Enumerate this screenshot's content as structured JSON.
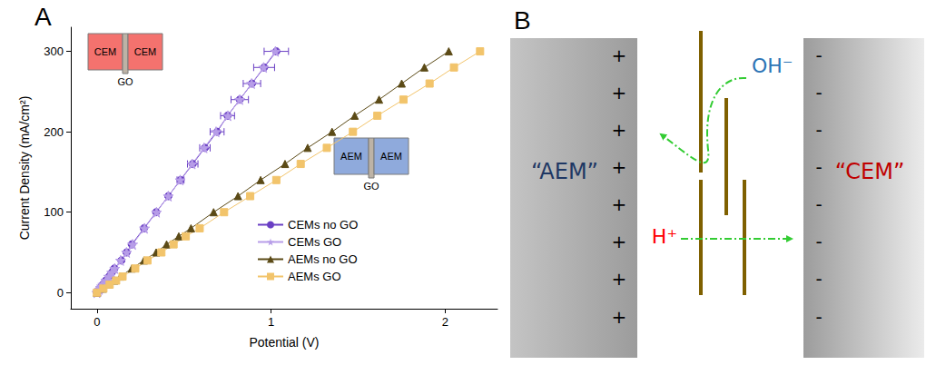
{
  "chart_data": {
    "type": "line",
    "panel_label": "A",
    "x_label": "Potential (V)",
    "y_label": "Current Density (mA/cm²)",
    "xlim": [
      -0.15,
      2.3
    ],
    "xticks": [
      0,
      1,
      2
    ],
    "ylim": [
      -20,
      330
    ],
    "yticks": [
      0,
      100,
      200,
      300
    ],
    "grid": false,
    "legend": "lower right",
    "annotations": [
      {
        "labels": [
          "CEM",
          "CEM"
        ],
        "middle": "GO"
      },
      {
        "labels": [
          "AEM",
          "AEM"
        ],
        "middle": "GO"
      }
    ],
    "series": [
      {
        "name": "CEMs no GO",
        "color": "#6a3fc4",
        "marker": "circle",
        "x": [
          0,
          0.007,
          0.014,
          0.021,
          0.027,
          0.034,
          0.05,
          0.07,
          0.085,
          0.1,
          0.14,
          0.17,
          0.2,
          0.27,
          0.34,
          0.41,
          0.48,
          0.55,
          0.62,
          0.69,
          0.75,
          0.82,
          0.89,
          0.96,
          1.03
        ],
        "values": [
          0,
          2,
          4,
          6,
          8,
          10,
          15,
          20,
          25,
          30,
          40,
          50,
          60,
          80,
          100,
          120,
          140,
          160,
          180,
          200,
          220,
          240,
          260,
          280,
          300
        ],
        "x_error": [
          null,
          null,
          null,
          null,
          null,
          null,
          null,
          null,
          null,
          null,
          null,
          null,
          null,
          null,
          null,
          null,
          0.02,
          0.03,
          0.03,
          0.04,
          0.04,
          0.05,
          0.05,
          0.06,
          0.07
        ]
      },
      {
        "name": "CEMs GO",
        "color": "#b79de8",
        "marker": "star",
        "x": [
          0,
          0.007,
          0.014,
          0.02,
          0.027,
          0.034,
          0.051,
          0.068,
          0.085,
          0.102,
          0.136,
          0.17,
          0.205,
          0.273,
          0.342,
          0.41,
          0.478,
          0.547,
          0.615,
          0.684,
          0.752,
          0.82,
          0.888,
          0.957,
          1.025
        ],
        "values": [
          0,
          2,
          4,
          6,
          8,
          10,
          15,
          20,
          25,
          30,
          40,
          50,
          60,
          80,
          100,
          120,
          140,
          160,
          180,
          200,
          220,
          240,
          260,
          280,
          300
        ]
      },
      {
        "name": "AEMs no GO",
        "color": "#5b4a16",
        "marker": "triangle",
        "x": [
          0,
          0.034,
          0.067,
          0.1,
          0.135,
          0.2,
          0.27,
          0.34,
          0.4,
          0.47,
          0.54,
          0.67,
          0.81,
          0.94,
          1.08,
          1.21,
          1.35,
          1.48,
          1.62,
          1.75,
          1.88,
          2.02
        ],
        "values": [
          0,
          5,
          10,
          15,
          20,
          30,
          40,
          50,
          60,
          70,
          80,
          100,
          120,
          140,
          160,
          180,
          200,
          220,
          240,
          260,
          280,
          300
        ]
      },
      {
        "name": "AEMs GO",
        "color": "#f2c46b",
        "marker": "square",
        "x": [
          0,
          0.037,
          0.073,
          0.11,
          0.147,
          0.22,
          0.29,
          0.37,
          0.44,
          0.51,
          0.59,
          0.73,
          0.88,
          1.03,
          1.17,
          1.32,
          1.47,
          1.61,
          1.76,
          1.91,
          2.05,
          2.2
        ],
        "values": [
          0,
          5,
          10,
          15,
          20,
          30,
          40,
          50,
          60,
          70,
          80,
          100,
          120,
          140,
          160,
          180,
          200,
          220,
          240,
          260,
          280,
          300
        ]
      }
    ]
  },
  "diagram": {
    "panel_label": "B",
    "left": {
      "label": "“AEM”",
      "sign": "+",
      "signs": 8,
      "color": "#1f3864"
    },
    "right": {
      "label": "“CEM”",
      "sign": "-",
      "signs": 8,
      "color": "#c00000"
    },
    "ions": [
      {
        "text": "OH⁻",
        "color": "#2e75b6"
      },
      {
        "text": "H⁺",
        "color": "#ff0000"
      }
    ]
  }
}
